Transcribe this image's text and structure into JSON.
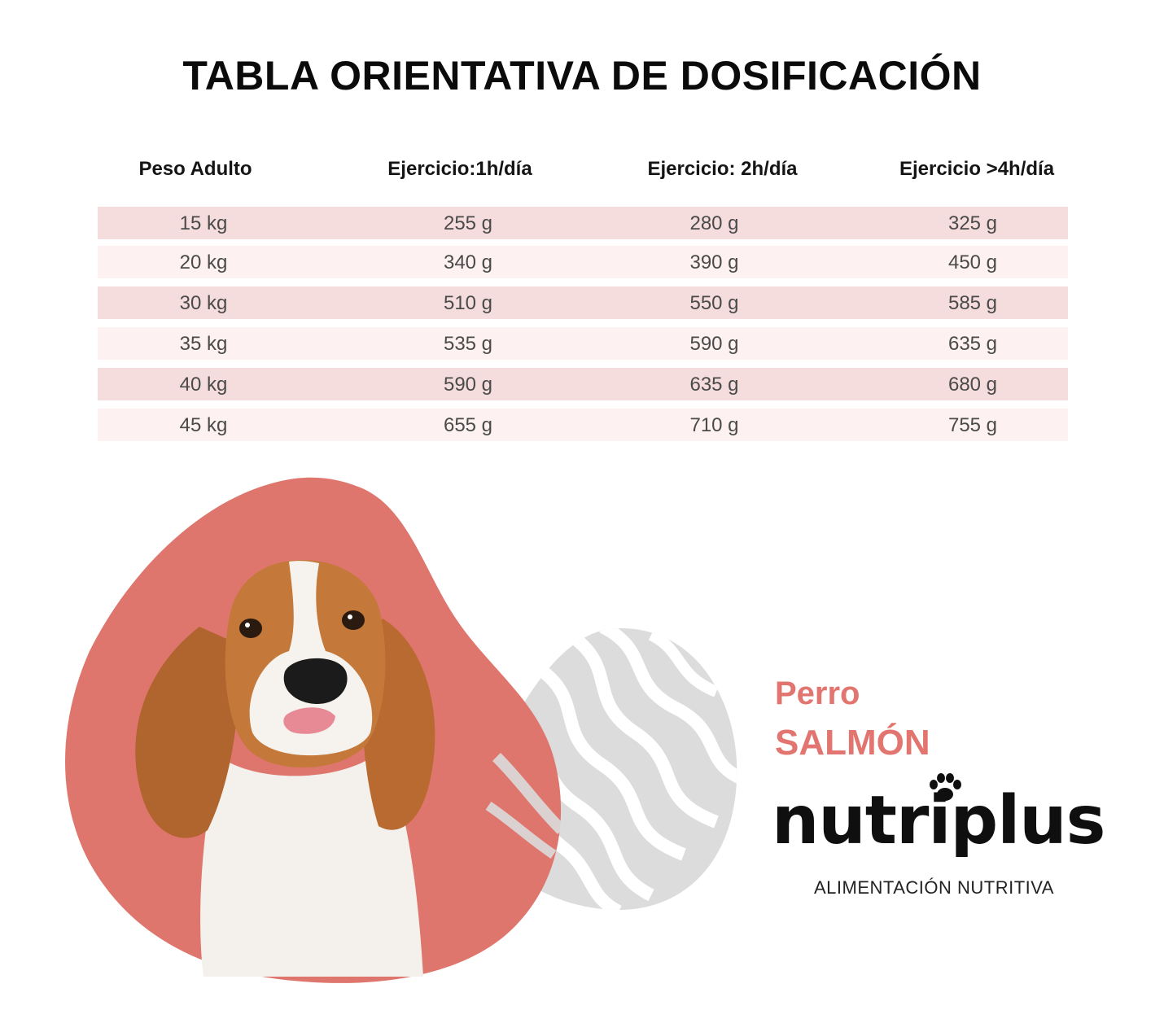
{
  "title": "TABLA ORIENTATIVA DE DOSIFICACIÓN",
  "table": {
    "headers": [
      "Peso Adulto",
      "Ejercicio:1h/día",
      "Ejercicio: 2h/día",
      "Ejercicio >4h/día"
    ],
    "rows": [
      [
        "15 kg",
        "255 g",
        "280 g",
        "325 g"
      ],
      [
        "20 kg",
        "340 g",
        "390 g",
        "450 g"
      ],
      [
        "30 kg",
        "510 g",
        "550 g",
        "585 g"
      ],
      [
        "35 kg",
        "535 g",
        "590 g",
        "635 g"
      ],
      [
        "40 kg",
        "590 g",
        "635 g",
        "680 g"
      ],
      [
        "45 kg",
        "655 g",
        "710 g",
        "755 g"
      ]
    ]
  },
  "product": {
    "line1": "Perro",
    "line2": "SALMÓN"
  },
  "brand": {
    "logo": "nutriplus",
    "tagline": "ALIMENTACIÓN NUTRITIVA"
  },
  "colors": {
    "accent": "#e2756f",
    "blob": "#df766d",
    "row_dark": "#f5dcdd",
    "row_light": "#fdf1f1",
    "salmon_graphic": "#dcdcdc"
  },
  "images": {
    "dog": "beagle-puppy-photo",
    "graphic": "salmon-steak-graphic",
    "paw": "paw-icon"
  }
}
